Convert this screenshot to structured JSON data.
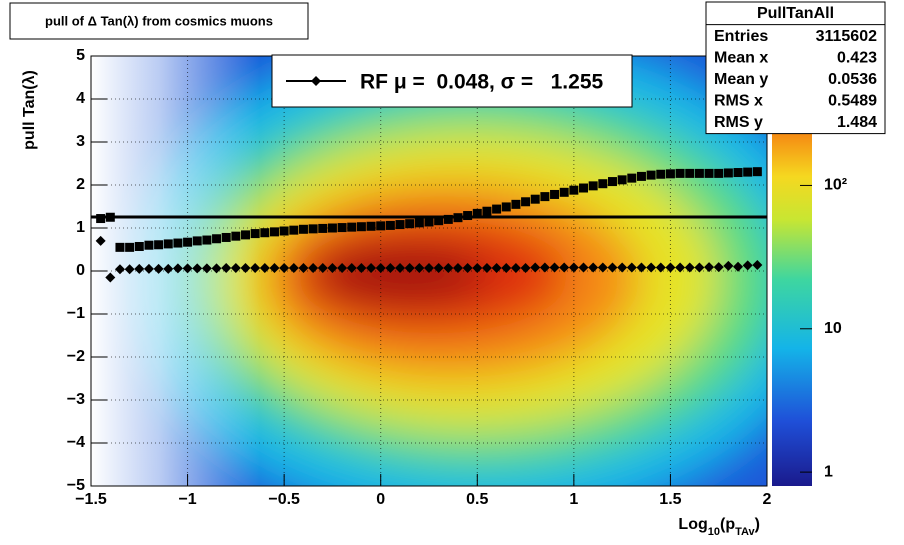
{
  "chart_data": {
    "type": "scatter",
    "title": "pull of Δ Tan(λ) from cosmics muons",
    "ylabel": "pull Tan(λ)",
    "xlabel_parts": [
      "Log",
      "10",
      "(p",
      "TAv",
      ")"
    ],
    "xlim": [
      -1.5,
      2
    ],
    "ylim": [
      -5,
      5
    ],
    "xticks": [
      {
        "value": -1.5,
        "label": "−1.5"
      },
      {
        "value": -1,
        "label": "−1"
      },
      {
        "value": -0.5,
        "label": "−0.5"
      },
      0,
      0.5,
      1,
      1.5,
      2
    ],
    "yticks": [
      {
        "value": -5,
        "label": "−5"
      },
      {
        "value": -4,
        "label": "−4"
      },
      {
        "value": -3,
        "label": "−3"
      },
      {
        "value": -2,
        "label": "−2"
      },
      {
        "value": -1,
        "label": "−1"
      },
      0,
      1,
      2,
      3,
      4,
      5
    ],
    "grid": true,
    "zlim": [
      0.8,
      800
    ],
    "zlog": true,
    "zticks": [
      1,
      10,
      {
        "value": 100,
        "label": "10²"
      }
    ],
    "x": [
      -1.45,
      -1.4,
      -1.35,
      -1.3,
      -1.25,
      -1.2,
      -1.15,
      -1.1,
      -1.05,
      -1.0,
      -0.95,
      -0.9,
      -0.85,
      -0.8,
      -0.75,
      -0.7,
      -0.65,
      -0.6,
      -0.55,
      -0.5,
      -0.45,
      -0.4,
      -0.35,
      -0.3,
      -0.25,
      -0.2,
      -0.15,
      -0.1,
      -0.05,
      0,
      0.05,
      0.1,
      0.15,
      0.2,
      0.25,
      0.3,
      0.35,
      0.4,
      0.45,
      0.5,
      0.55,
      0.6,
      0.65,
      0.7,
      0.75,
      0.8,
      0.85,
      0.9,
      0.95,
      1.0,
      1.05,
      1.1,
      1.15,
      1.2,
      1.25,
      1.3,
      1.35,
      1.4,
      1.45,
      1.5,
      1.55,
      1.6,
      1.65,
      1.7,
      1.75,
      1.8,
      1.85,
      1.9,
      1.95
    ],
    "series": [
      {
        "name": "sigma",
        "marker": "square",
        "color": "#000000",
        "values": [
          1.22,
          1.25,
          0.55,
          0.55,
          0.57,
          0.6,
          0.61,
          0.63,
          0.65,
          0.67,
          0.7,
          0.72,
          0.75,
          0.78,
          0.81,
          0.84,
          0.87,
          0.89,
          0.91,
          0.93,
          0.95,
          0.97,
          0.98,
          0.99,
          1.0,
          1.01,
          1.02,
          1.03,
          1.04,
          1.05,
          1.06,
          1.08,
          1.1,
          1.12,
          1.14,
          1.17,
          1.2,
          1.24,
          1.29,
          1.34,
          1.39,
          1.44,
          1.49,
          1.55,
          1.61,
          1.67,
          1.73,
          1.78,
          1.83,
          1.88,
          1.93,
          1.98,
          2.03,
          2.08,
          2.12,
          2.16,
          2.2,
          2.23,
          2.25,
          2.26,
          2.27,
          2.27,
          2.27,
          2.27,
          2.27,
          2.28,
          2.29,
          2.3,
          2.31
        ]
      },
      {
        "name": "mean",
        "marker": "diamond",
        "color": "#000000",
        "values": [
          0.7,
          -0.15,
          0.04,
          0.04,
          0.05,
          0.05,
          0.05,
          0.05,
          0.06,
          0.06,
          0.06,
          0.06,
          0.06,
          0.07,
          0.07,
          0.07,
          0.07,
          0.07,
          0.07,
          0.07,
          0.07,
          0.07,
          0.07,
          0.07,
          0.07,
          0.07,
          0.07,
          0.07,
          0.07,
          0.07,
          0.07,
          0.07,
          0.07,
          0.07,
          0.07,
          0.07,
          0.07,
          0.07,
          0.07,
          0.07,
          0.07,
          0.07,
          0.07,
          0.07,
          0.07,
          0.08,
          0.08,
          0.08,
          0.08,
          0.08,
          0.08,
          0.08,
          0.08,
          0.08,
          0.08,
          0.08,
          0.08,
          0.08,
          0.08,
          0.08,
          0.08,
          0.08,
          0.08,
          0.09,
          0.09,
          0.12,
          0.1,
          0.13,
          0.14
        ]
      }
    ],
    "fit_level": 1.255,
    "legend": {
      "label": "RF μ =  0.048, σ =   1.255"
    },
    "stats": {
      "title": "PullTanAll",
      "rows": [
        [
          "Entries",
          "3115602"
        ],
        [
          "Mean x",
          "0.423"
        ],
        [
          "Mean y",
          "0.0536"
        ],
        [
          "RMS x",
          "0.5489"
        ],
        [
          "RMS y",
          "1.484"
        ]
      ]
    }
  }
}
